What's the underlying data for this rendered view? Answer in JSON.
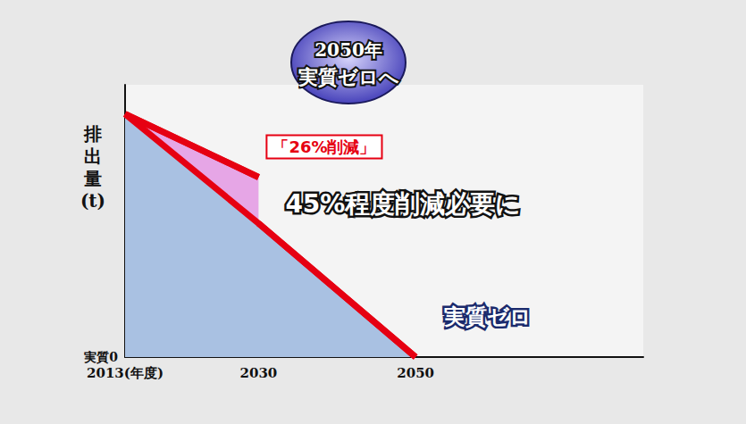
{
  "chart_data": {
    "type": "line",
    "title": "2050年 実質ゼロへ",
    "y_label": "排出量(t)",
    "color": "#e60012",
    "xlim": [
      2013,
      2079
    ],
    "xticks": [
      {
        "value": 2013,
        "label": "2013(年度)"
      },
      2030,
      2050
    ],
    "ylim": [
      0,
      112
    ],
    "yticks": [
      {
        "value": 0,
        "label": "実質0"
      }
    ],
    "grid": false,
    "series": [
      {
        "type": "area",
        "color": "#e6a6e6",
        "x": [
          2013,
          2030
        ],
        "values": [
          100,
          74
        ]
      },
      {
        "type": "area",
        "color": "#a9c1e2",
        "x": [
          2013,
          2030,
          2050
        ],
        "values": [
          100,
          55,
          0
        ]
      }
    ],
    "annotations": [
      {
        "text": "「26%削減」",
        "x": 2030,
        "y": 74
      },
      {
        "text": "45%程度削減必要に",
        "x": 2030,
        "y": 55
      },
      {
        "text": "実質ゼロ",
        "x": 2050,
        "y": 0
      }
    ]
  }
}
